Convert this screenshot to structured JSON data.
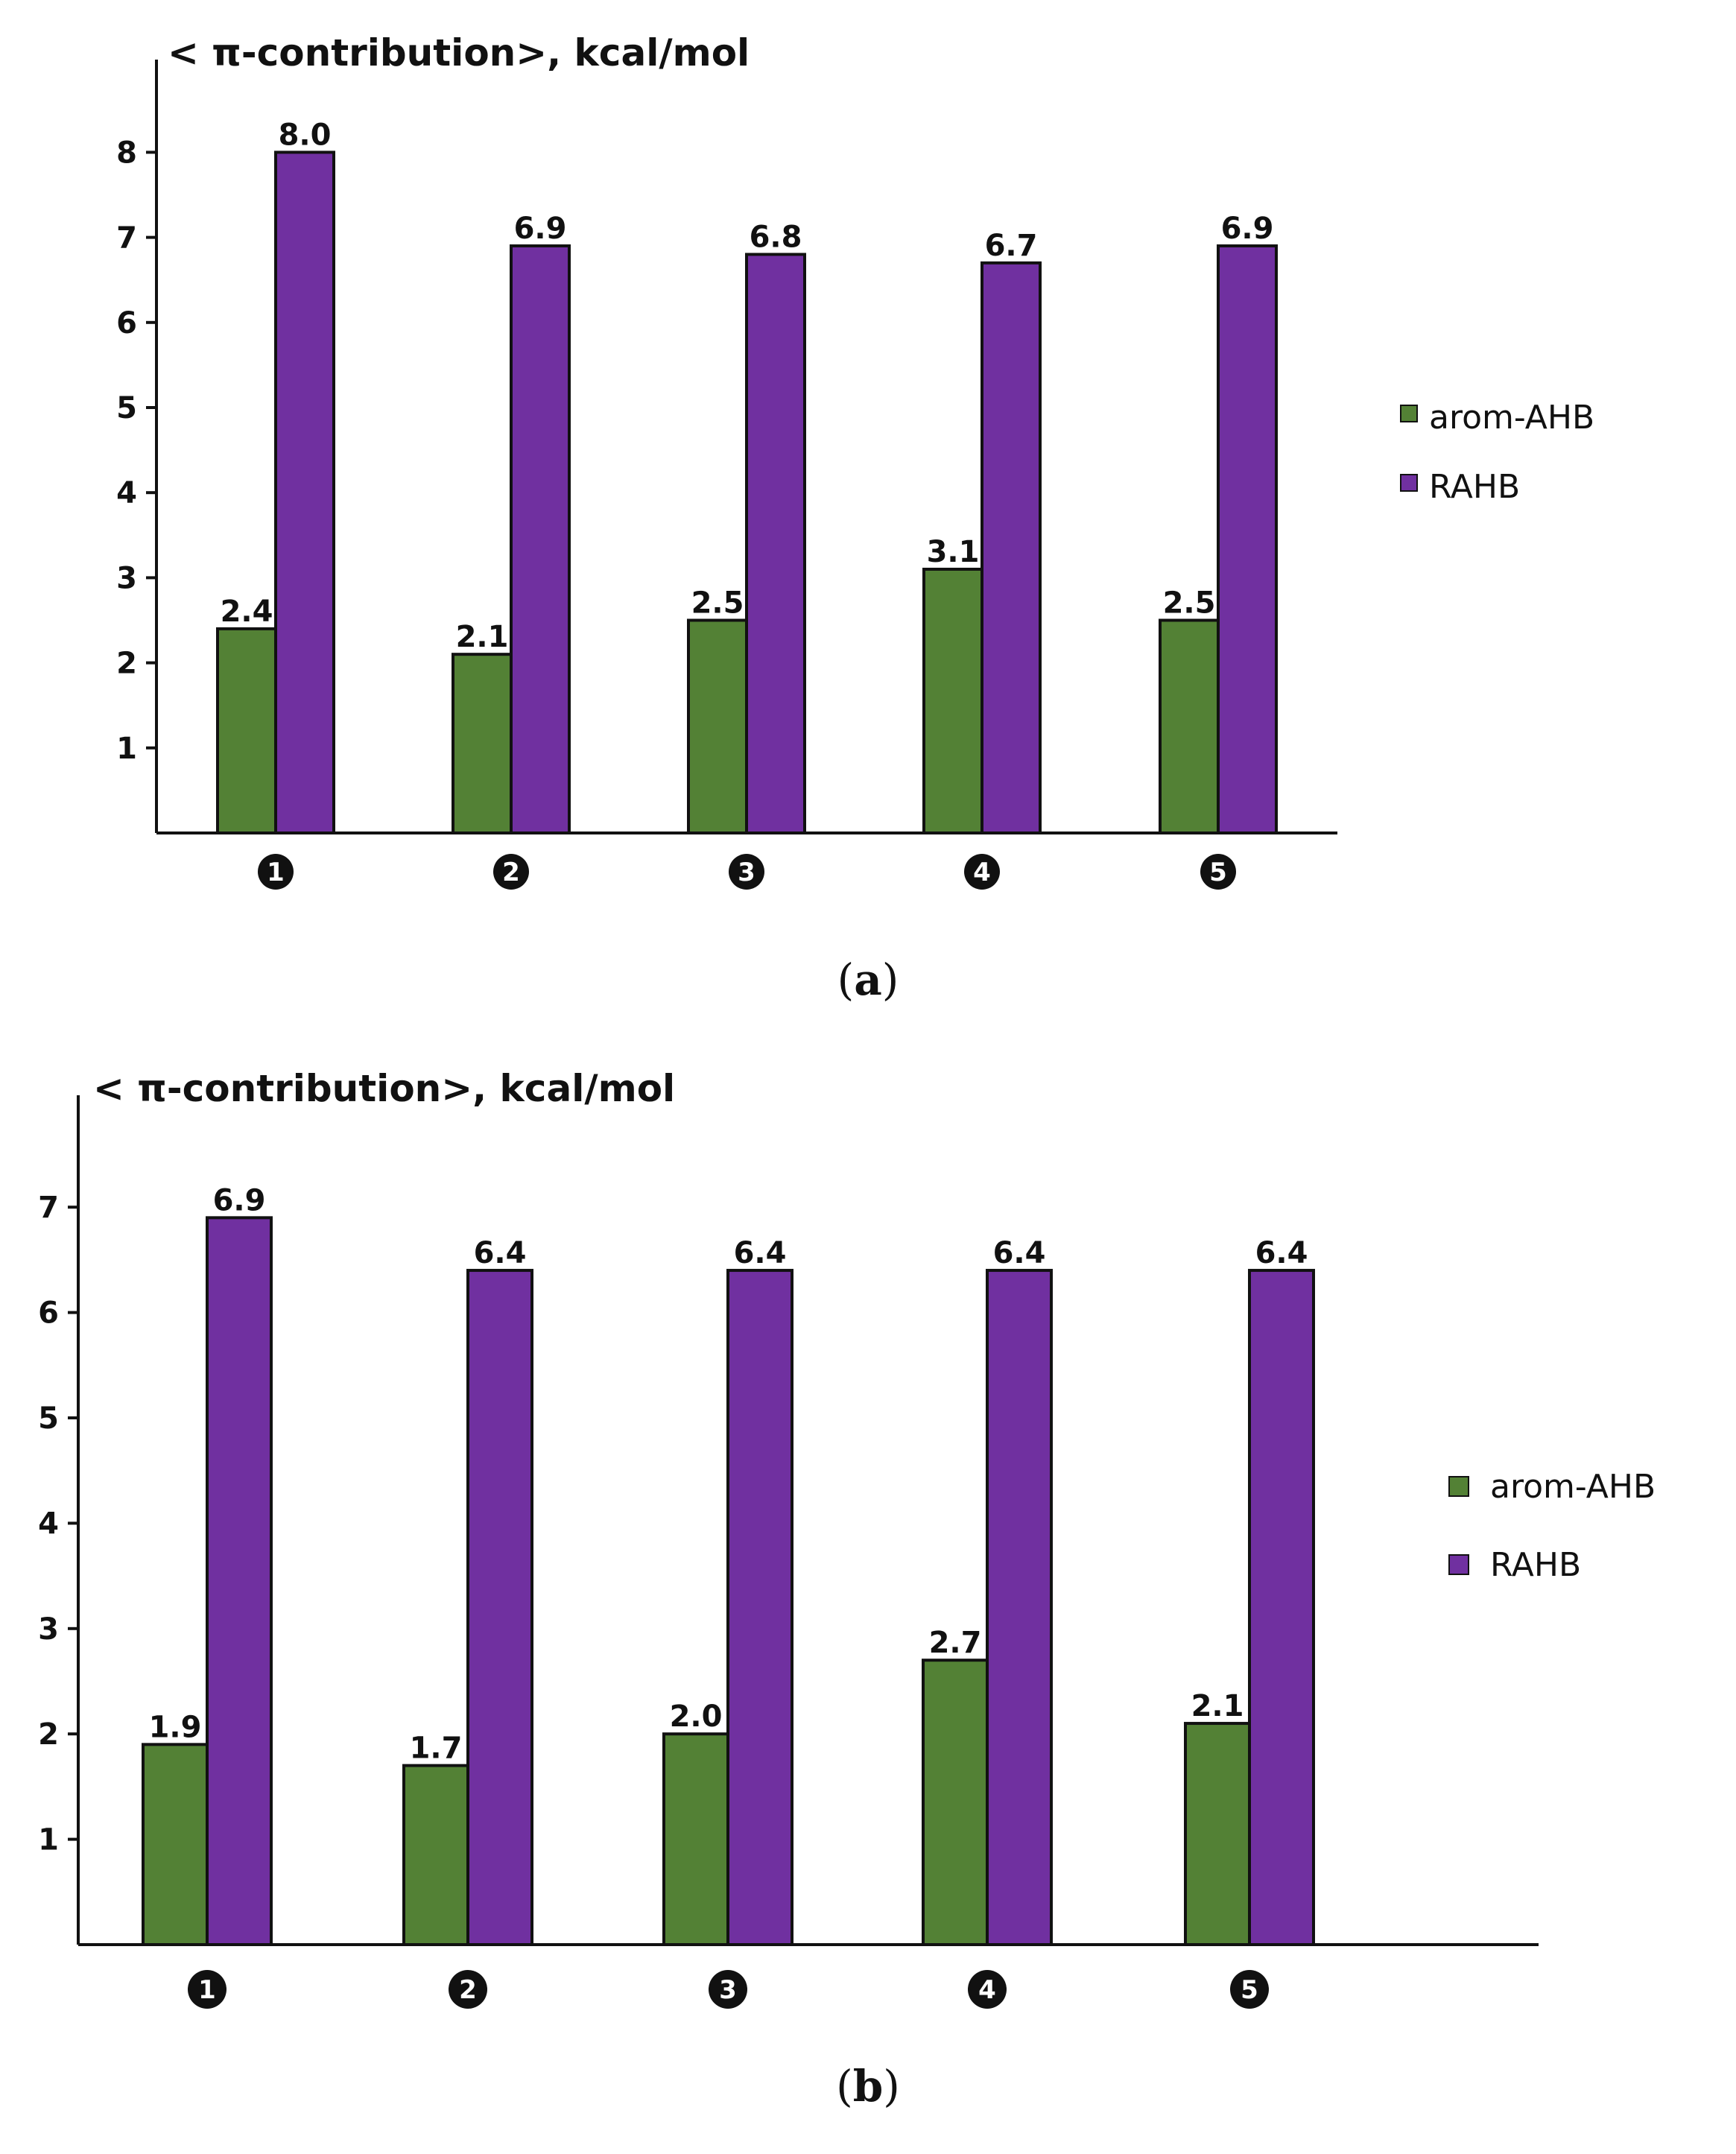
{
  "colors": {
    "series_1": "#538135",
    "series_2": "#7030a0",
    "axis": "#111111"
  },
  "chart_data": [
    {
      "type": "bar",
      "panel": "a",
      "caption": {
        "open": "(",
        "letter": "a",
        "close": ")"
      },
      "ylabel": "< π-contribution>, kcal/mol",
      "categories": [
        "1",
        "2",
        "3",
        "4",
        "5"
      ],
      "yticks": [
        1,
        2,
        3,
        4,
        5,
        6,
        7,
        8
      ],
      "ylim": [
        0,
        8.9
      ],
      "legend_position": "right",
      "series": [
        {
          "name": "arom-AHB",
          "values": [
            2.4,
            2.1,
            2.5,
            3.1,
            2.5
          ],
          "labels": [
            "2.4",
            "2.1",
            "2.5",
            "3.1",
            "2.5"
          ]
        },
        {
          "name": "RAHB",
          "values": [
            8.0,
            6.9,
            6.8,
            6.7,
            6.9
          ],
          "labels": [
            "8.0",
            "6.9",
            "6.8",
            "6.7",
            "6.9"
          ]
        }
      ]
    },
    {
      "type": "bar",
      "panel": "b",
      "caption": {
        "open": "(",
        "letter": "b",
        "close": ")"
      },
      "ylabel": "< π-contribution>, kcal/mol",
      "categories": [
        "1",
        "2",
        "3",
        "4",
        "5"
      ],
      "yticks": [
        1,
        2,
        3,
        4,
        5,
        6,
        7
      ],
      "ylim": [
        0,
        7.9
      ],
      "legend_position": "right",
      "series": [
        {
          "name": "arom-AHB",
          "values": [
            1.9,
            1.7,
            2.0,
            2.7,
            2.1
          ],
          "labels": [
            "1.9",
            "1.7",
            "2.0",
            "2.7",
            "2.1"
          ]
        },
        {
          "name": "RAHB",
          "values": [
            6.9,
            6.4,
            6.4,
            6.4,
            6.4
          ],
          "labels": [
            "6.9",
            "6.4",
            "6.4",
            "6.4",
            "6.4"
          ]
        }
      ]
    }
  ]
}
